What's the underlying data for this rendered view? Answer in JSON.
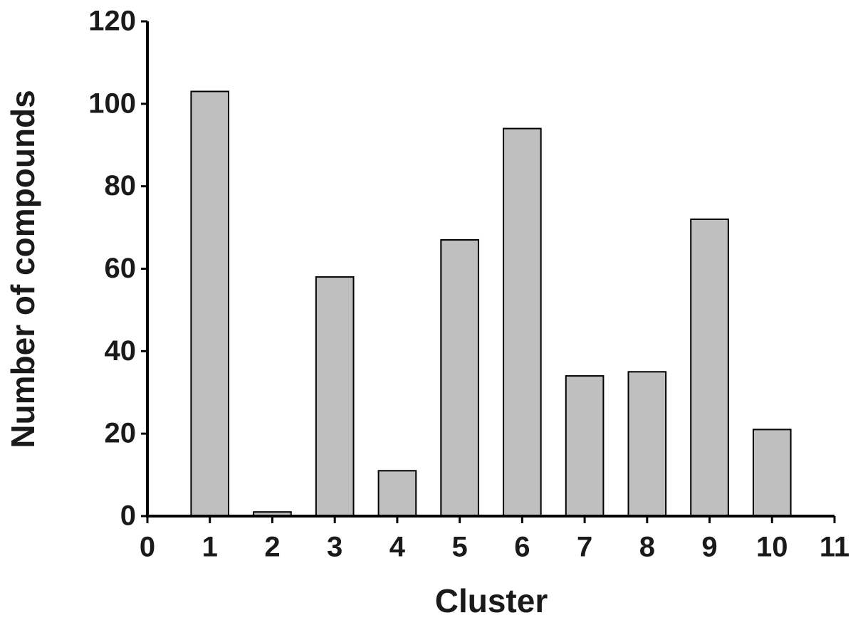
{
  "chart_data": {
    "type": "bar",
    "x_label": "Cluster",
    "y_label": "Number of compounds",
    "x": [
      1,
      2,
      3,
      4,
      5,
      6,
      7,
      8,
      9,
      10
    ],
    "values": [
      103,
      1,
      58,
      11,
      67,
      94,
      34,
      35,
      72,
      21
    ],
    "color": "#bfbfbf",
    "xlim": [
      0,
      11
    ],
    "xticks": [
      0,
      1,
      2,
      3,
      4,
      5,
      6,
      7,
      8,
      9,
      10,
      11
    ],
    "ylim": [
      0,
      120
    ],
    "yticks": [
      0,
      20,
      40,
      60,
      80,
      100,
      120
    ],
    "grid": false
  }
}
